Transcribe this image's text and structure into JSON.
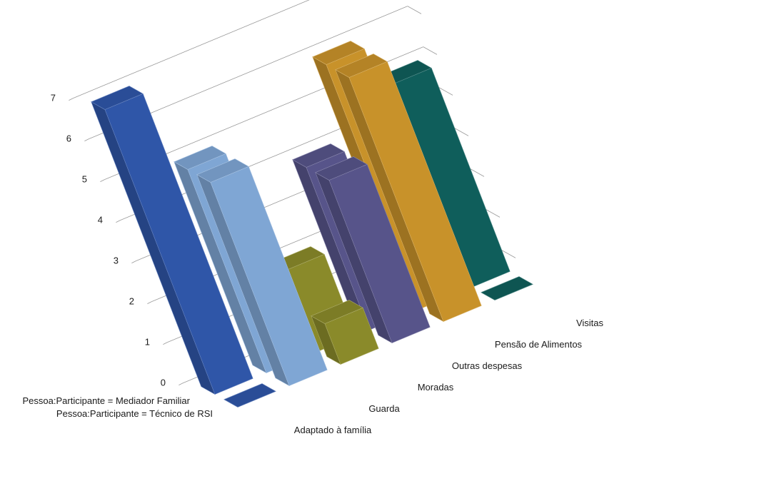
{
  "chart_data": {
    "type": "bar",
    "variant": "3d-column",
    "title": "",
    "xlabel": "",
    "ylabel": "",
    "ylim": [
      0,
      7
    ],
    "y_ticks": [
      "0",
      "1",
      "2",
      "3",
      "4",
      "5",
      "6",
      "7"
    ],
    "grid": true,
    "legend": "none",
    "categories": [
      "Adaptado à família",
      "Guarda",
      "Moradas",
      "Outras despesas",
      "Pensão de Alimentos",
      "Visitas"
    ],
    "series": [
      {
        "name": "Pessoa:Participante = Técnico de RSI",
        "values": [
          0,
          5,
          1,
          4,
          6,
          0
        ]
      },
      {
        "name": "Pessoa:Participante = Mediador Familiar",
        "values": [
          7,
          5,
          2,
          4,
          6,
          5
        ]
      }
    ],
    "colors": [
      "#2f56a8",
      "#7fa6d4",
      "#8a8a2a",
      "#57548a",
      "#c8922a",
      "#0f5e5b"
    ]
  }
}
